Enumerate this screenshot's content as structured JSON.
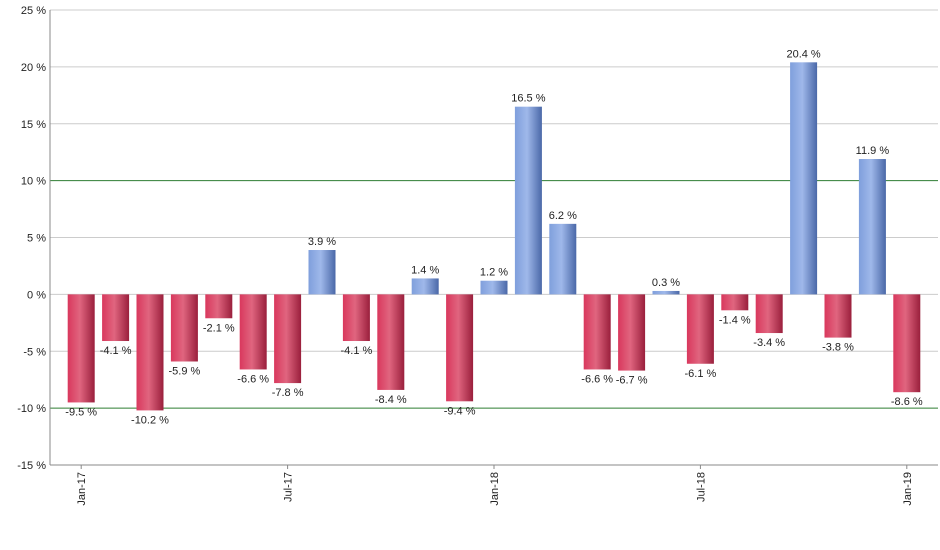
{
  "chart_data": {
    "type": "bar",
    "title": "",
    "xlabel": "",
    "ylabel": "",
    "ylim": [
      -15,
      25
    ],
    "ytick_step": 5,
    "y_unit": " %",
    "grid": true,
    "reference_lines": [
      10,
      -10
    ],
    "colors": {
      "positive": "#7f9fdc",
      "positive_dark": "#4a68a8",
      "negative": "#d9385d",
      "negative_dark": "#9a1f3c",
      "grid": "#cccccc",
      "reference": "#2e7d32",
      "axis": "#888888"
    },
    "x_tick_labels": [
      {
        "label": "Jan-17",
        "index": 0
      },
      {
        "label": "Jul-17",
        "index": 6
      },
      {
        "label": "Jan-18",
        "index": 12
      },
      {
        "label": "Jul-18",
        "index": 18
      },
      {
        "label": "Jan-19",
        "index": 24
      }
    ],
    "categories": [
      "Jan-17",
      "Feb-17",
      "Mar-17",
      "Apr-17",
      "May-17",
      "Jun-17",
      "Jul-17",
      "Aug-17",
      "Sep-17",
      "Oct-17",
      "Nov-17",
      "Dec-17",
      "Jan-18",
      "Feb-18",
      "Mar-18",
      "Apr-18",
      "May-18",
      "Jun-18",
      "Jul-18",
      "Aug-18",
      "Sep-18",
      "Oct-18",
      "Nov-18",
      "Dec-18",
      "Jan-19"
    ],
    "values": [
      -9.5,
      -4.1,
      -10.2,
      -5.9,
      -2.1,
      -6.6,
      -7.8,
      3.9,
      -4.1,
      -8.4,
      1.4,
      -9.4,
      1.2,
      16.5,
      6.2,
      -6.6,
      -6.7,
      0.3,
      -6.1,
      -1.4,
      -3.4,
      20.4,
      -3.8,
      11.9,
      -8.6
    ],
    "data_labels": [
      "-9.5 %",
      "-4.1 %",
      "-10.2 %",
      "-5.9 %",
      "-2.1 %",
      "-6.6 %",
      "-7.8 %",
      "3.9 %",
      "-4.1 %",
      "-8.4 %",
      "1.4 %",
      "-9.4 %",
      "1.2 %",
      "16.5 %",
      "6.2 %",
      "-6.6 %",
      "-6.7 %",
      "0.3 %",
      "-6.1 %",
      "-1.4 %",
      "-3.4 %",
      "20.4 %",
      "-3.8 %",
      "11.9 %",
      "-8.6 %"
    ]
  }
}
